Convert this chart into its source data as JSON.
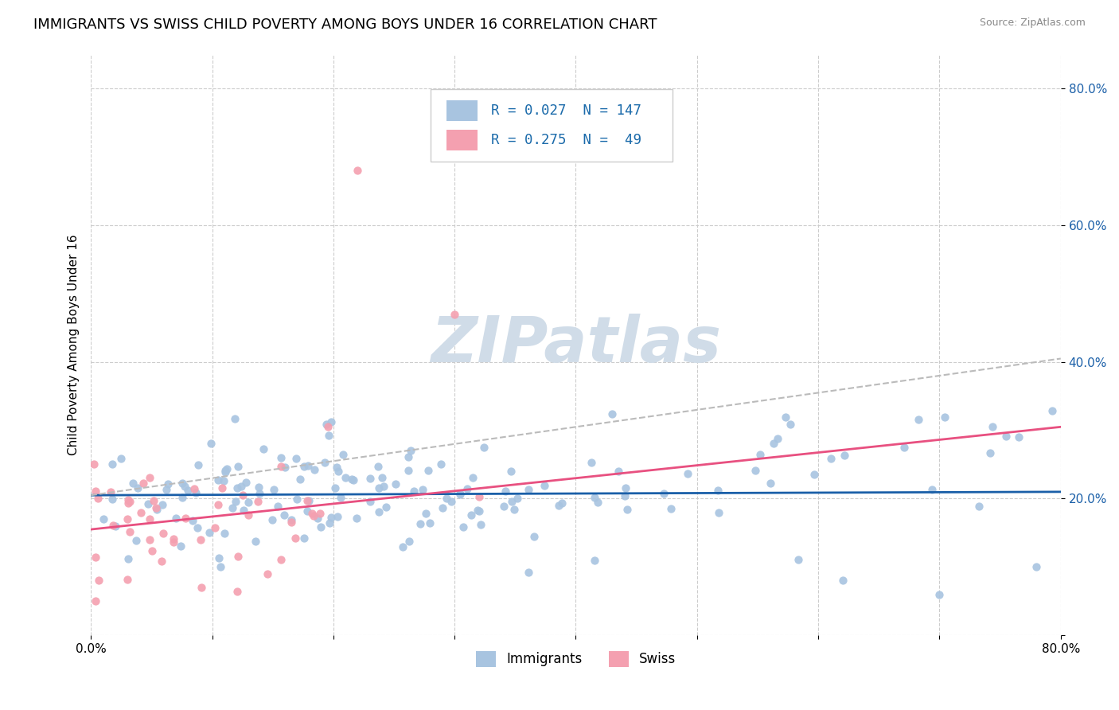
{
  "title": "IMMIGRANTS VS SWISS CHILD POVERTY AMONG BOYS UNDER 16 CORRELATION CHART",
  "source": "Source: ZipAtlas.com",
  "ylabel": "Child Poverty Among Boys Under 16",
  "xlim": [
    0.0,
    0.8
  ],
  "ylim": [
    0.0,
    0.85
  ],
  "xticks": [
    0.0,
    0.1,
    0.2,
    0.3,
    0.4,
    0.5,
    0.6,
    0.7,
    0.8
  ],
  "xtick_labels": [
    "0.0%",
    "",
    "",
    "",
    "",
    "",
    "",
    "",
    "80.0%"
  ],
  "yticks": [
    0.0,
    0.2,
    0.4,
    0.6,
    0.8
  ],
  "ytick_labels": [
    "",
    "20.0%",
    "40.0%",
    "60.0%",
    "80.0%"
  ],
  "immigrants_color": "#a8c4e0",
  "swiss_color": "#f4a0b0",
  "immigrants_line_color": "#1a5fa8",
  "swiss_line_color": "#e85080",
  "R_immigrants": 0.027,
  "N_immigrants": 147,
  "R_swiss": 0.275,
  "N_swiss": 49,
  "watermark": "ZIPatlas",
  "watermark_color": "#d0dce8",
  "grid_color": "#cccccc",
  "background_color": "#ffffff",
  "title_fontsize": 13,
  "axis_label_fontsize": 11,
  "tick_fontsize": 11,
  "legend_color": "#1a6aaa",
  "imm_line_y0": 0.205,
  "imm_line_y1": 0.21,
  "swiss_line_y0": 0.155,
  "swiss_line_y1": 0.305,
  "dashed_line_y0": 0.205,
  "dashed_line_y1": 0.405
}
